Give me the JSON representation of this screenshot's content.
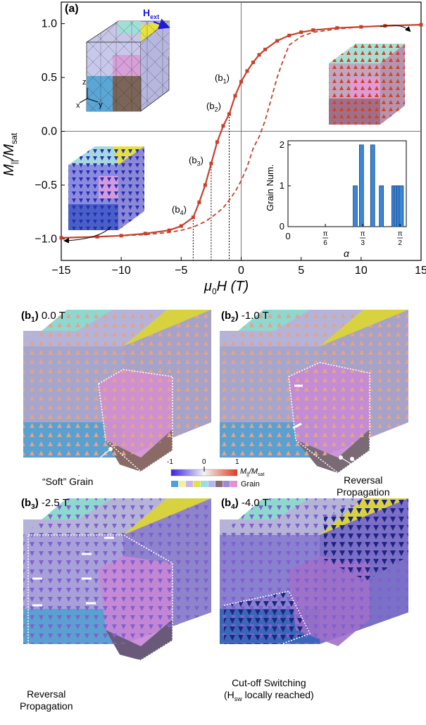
{
  "figure": {
    "panel_a": {
      "label": "(a)",
      "ylabel_main": "M",
      "ylabel_sub1": "||",
      "ylabel_div": "/M",
      "ylabel_sub2": "sat",
      "xlabel_main": "μ",
      "xlabel_sub": "0",
      "xlabel_rest": "H (T)",
      "field_label": "H",
      "field_sub": "ext",
      "axis_labels": {
        "z": "z",
        "x": "x",
        "y": "y"
      },
      "curve_labels": [
        {
          "id": "b1",
          "text": "(b",
          "sub": "1",
          "close": ")"
        },
        {
          "id": "b2",
          "text": "(b",
          "sub": "2",
          "close": ")"
        },
        {
          "id": "b3",
          "text": "(b",
          "sub": "3",
          "close": ")"
        },
        {
          "id": "b4",
          "text": "(b",
          "sub": "4",
          "close": ")"
        }
      ],
      "inset": {
        "ylabel": "Grain Num.",
        "xlabel": "α",
        "x_ticks": [
          "0",
          "π/6",
          "π/3",
          "π/2"
        ],
        "y_ticks": [
          "0",
          "1",
          "2"
        ]
      }
    },
    "subpanels": [
      {
        "id": "b1",
        "label": "(b",
        "sub": "1",
        "close": ")",
        "field": "0.0 T"
      },
      {
        "id": "b2",
        "label": "(b",
        "sub": "2",
        "close": ")",
        "field": "-1.0 T"
      },
      {
        "id": "b3",
        "label": "(b",
        "sub": "3",
        "close": ")",
        "field": "-2.5 T"
      },
      {
        "id": "b4",
        "label": "(b",
        "sub": "4",
        "close": ")",
        "field": "-4.0 T"
      }
    ],
    "annotations": {
      "soft_grain": "“Soft” Grain",
      "reversal_line1": "Reversal",
      "reversal_line2": "Propagation",
      "cutoff_line1": "Cut-off Switching",
      "cutoff_line2_open": "(H",
      "cutoff_line2_sub": "sw",
      "cutoff_line2_close": " locally reached)"
    },
    "colorbar": {
      "ticks": [
        "-1",
        "0",
        "1"
      ],
      "label_main": "M",
      "label_sub1": "||",
      "label_div": "/M",
      "label_sub2": "sat",
      "grain_label": "Grain",
      "grain_colors": [
        "#4aa3e0",
        "#f4f0a0",
        "#c9b6ee",
        "#e4e04a",
        "#9ae0e0",
        "#b0b8f0",
        "#8a6c70",
        "#9a8ad8",
        "#e88fd2"
      ]
    },
    "colors": {
      "curve": "#c8402a",
      "grain_teal": "#8fd8cf",
      "grain_lavender": "#b9b6dc",
      "grain_yellow": "#dcd84a",
      "grain_pink": "#d49ad4",
      "grain_blue": "#5aa0d0",
      "grain_brown": "#7a6660",
      "bar": "#3d86d6"
    }
  },
  "chart_data": [
    {
      "type": "line",
      "title": "",
      "xlabel": "μ0H (T)",
      "ylabel": "M||/Msat",
      "xlim": [
        -15,
        15
      ],
      "ylim": [
        -1.2,
        1.2
      ],
      "x_ticks": [
        -15,
        -10,
        -5,
        0,
        5,
        10,
        15
      ],
      "y_ticks": [
        -1.0,
        -0.5,
        0.0,
        0.5,
        1.0
      ],
      "x_tick_labels": [
        "−15",
        "−10",
        "−5",
        "0",
        "5",
        "10",
        "15"
      ],
      "y_tick_labels": [
        "−1.0",
        "−0.5",
        "0.0",
        "0.5",
        "1.0"
      ],
      "series": [
        {
          "style": "solid-markers",
          "x": [
            15,
            12,
            10,
            8,
            6,
            5,
            4,
            3,
            2,
            1.5,
            1,
            0.5,
            0,
            -0.5,
            -1,
            -1.5,
            -2,
            -2.5,
            -3,
            -3.5,
            -4,
            -5,
            -6,
            -8,
            -10,
            -12,
            -15
          ],
          "y": [
            0.99,
            0.98,
            0.97,
            0.96,
            0.94,
            0.92,
            0.89,
            0.84,
            0.76,
            0.71,
            0.64,
            0.56,
            0.46,
            0.33,
            0.16,
            0.05,
            -0.1,
            -0.3,
            -0.5,
            -0.66,
            -0.8,
            -0.88,
            -0.92,
            -0.95,
            -0.97,
            -0.98,
            -0.99
          ]
        },
        {
          "style": "dashed",
          "x": [
            -15,
            -12,
            -10,
            -8,
            -6,
            -5,
            -4,
            -3,
            -2,
            -1.5,
            -1,
            -0.5,
            0,
            0.5,
            1,
            1.5,
            2,
            2.5,
            3,
            3.5,
            4,
            5,
            6,
            8,
            10,
            12,
            15
          ],
          "y": [
            -0.99,
            -0.98,
            -0.97,
            -0.96,
            -0.94,
            -0.92,
            -0.89,
            -0.84,
            -0.76,
            -0.71,
            -0.64,
            -0.56,
            -0.46,
            -0.33,
            -0.16,
            -0.05,
            0.1,
            0.3,
            0.5,
            0.66,
            0.8,
            0.88,
            0.92,
            0.95,
            0.97,
            0.98,
            0.99
          ]
        }
      ],
      "guides_x": [
        -4.0,
        -2.5,
        -1.0
      ]
    },
    {
      "type": "bar",
      "title": "",
      "xlabel": "α",
      "ylabel": "Grain Num.",
      "xlim_deg": [
        0,
        95
      ],
      "ylim": [
        0,
        2.1
      ],
      "x_deg": [
        54,
        59,
        68,
        75,
        85,
        87,
        89,
        91
      ],
      "values": [
        1,
        2,
        2,
        1,
        1,
        1,
        1,
        1
      ]
    }
  ]
}
